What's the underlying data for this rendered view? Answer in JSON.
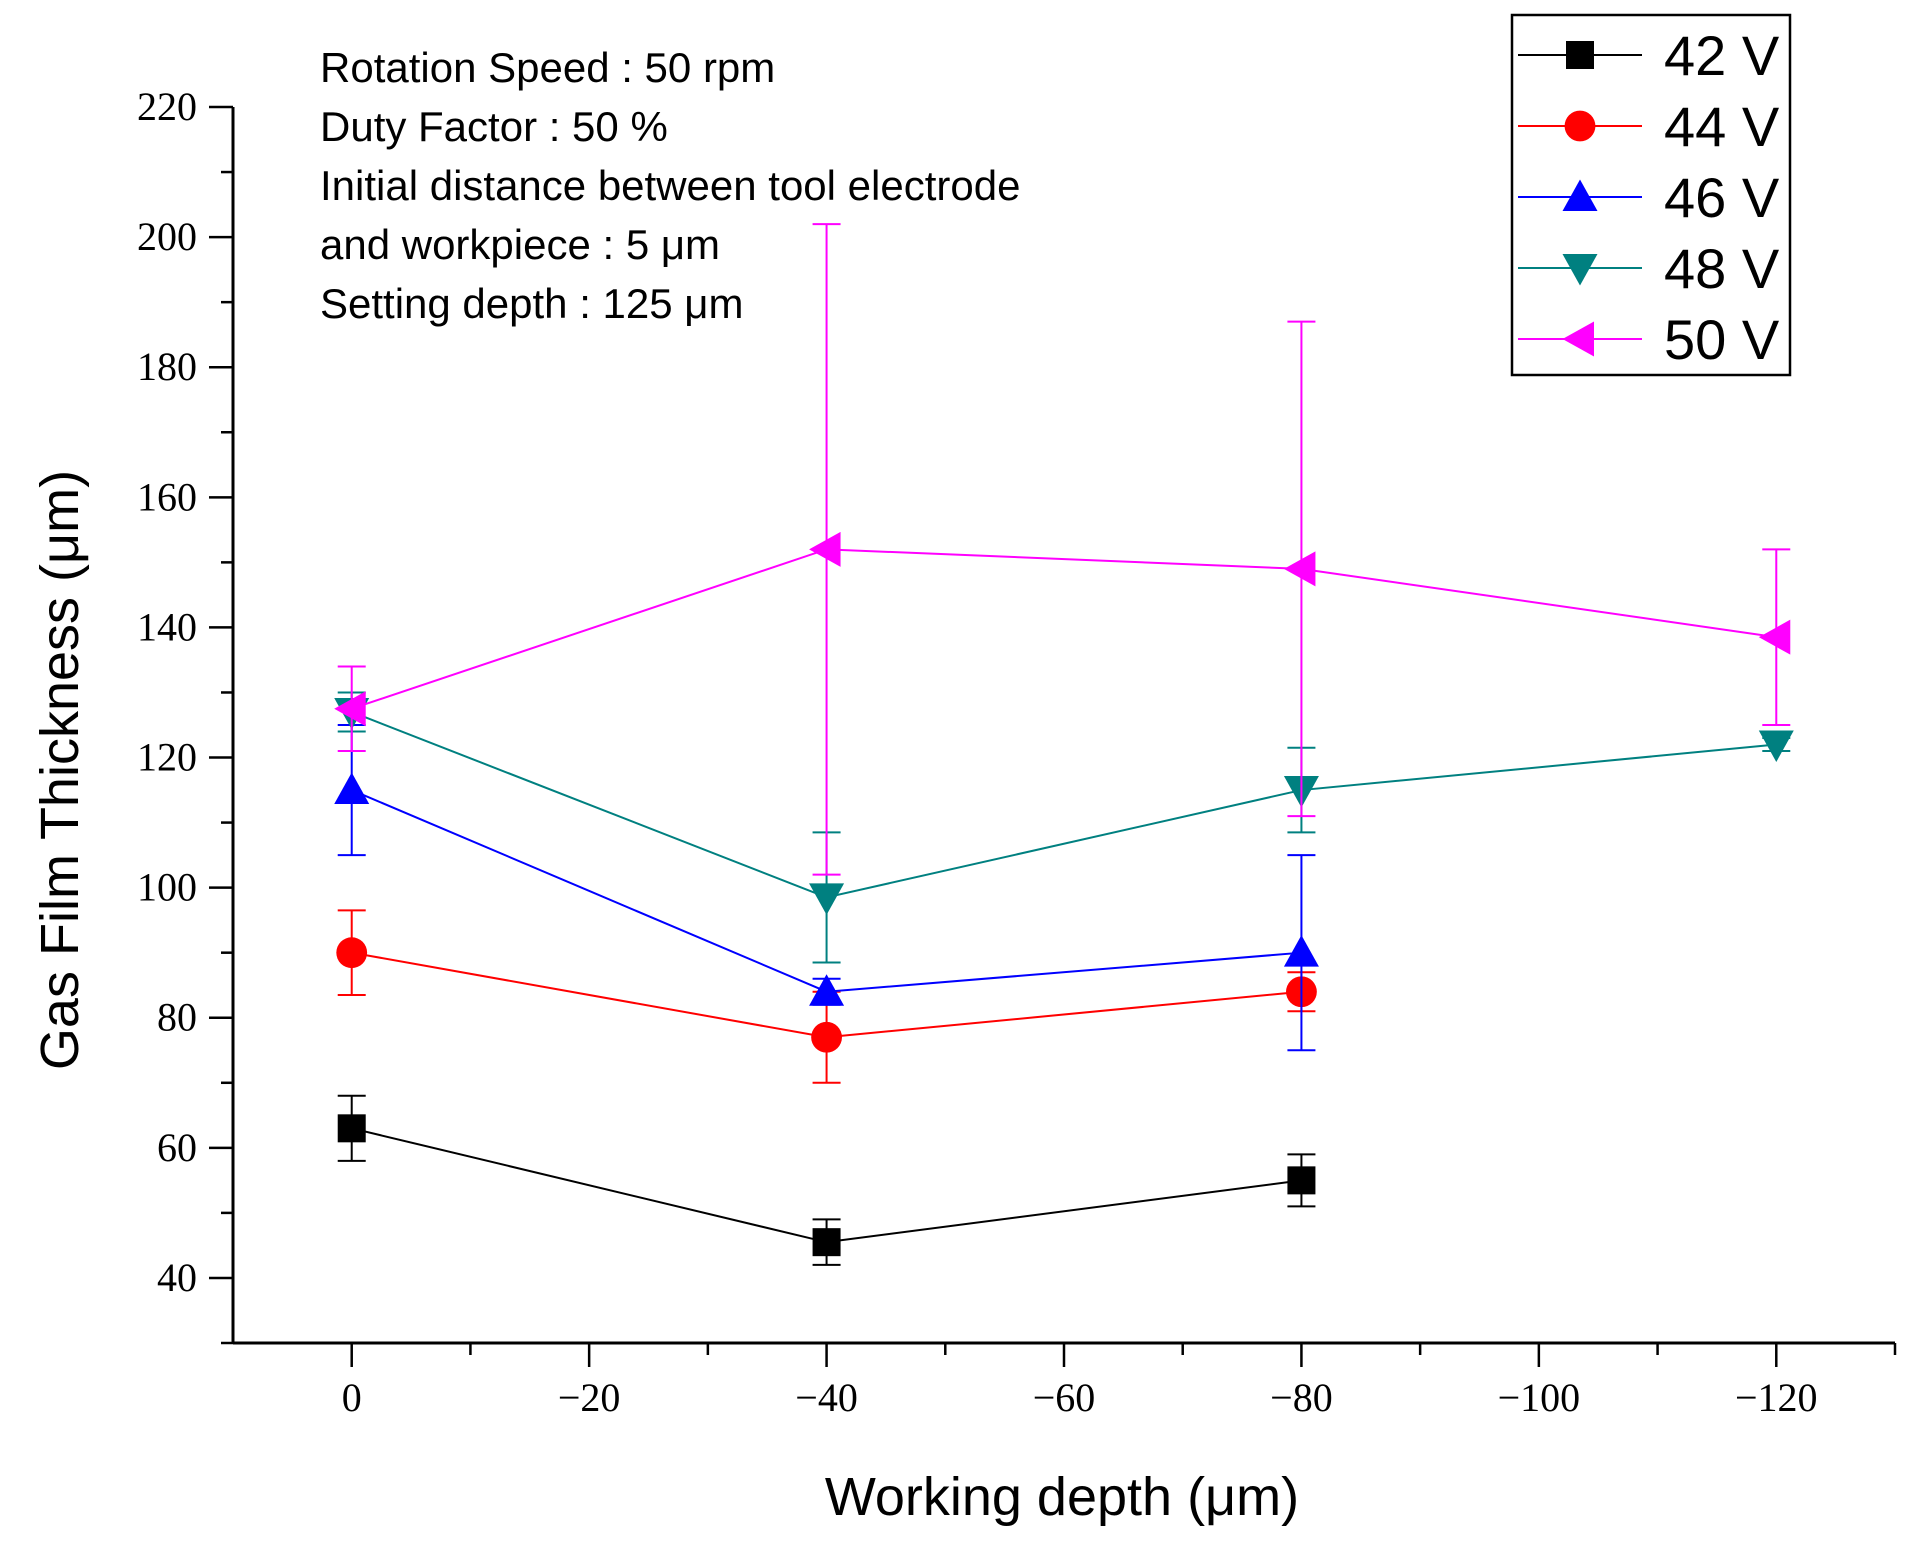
{
  "chart_data": {
    "type": "line",
    "xlabel": "Working depth (μm)",
    "ylabel": "Gas Film Thickness (μm)",
    "xlim": [
      10,
      -130
    ],
    "ylim": [
      30,
      220
    ],
    "x_ticks": [
      0,
      -20,
      -40,
      -60,
      -80,
      -100,
      -120
    ],
    "x_tick_labels": [
      "0",
      "−20",
      "−40",
      "−60",
      "−80",
      "−100",
      "−120"
    ],
    "y_ticks": [
      40,
      60,
      80,
      100,
      120,
      140,
      160,
      180,
      200,
      220
    ],
    "y_tick_labels": [
      "40",
      "60",
      "80",
      "100",
      "120",
      "140",
      "160",
      "180",
      "200",
      "220"
    ],
    "grid": false,
    "legend_position": "top-right",
    "annotations": [
      "Rotation Speed : 50 rpm",
      "Duty Factor : 50 %",
      "Initial distance between tool electrode",
      "and workpiece : 5 μm",
      "Setting depth : 125 μm"
    ],
    "series": [
      {
        "name": "42 V",
        "color": "#000000",
        "marker": "square",
        "points": [
          {
            "x": 0,
            "y": 63,
            "lo": 58,
            "hi": 68
          },
          {
            "x": -40,
            "y": 45.5,
            "lo": 42,
            "hi": 49
          },
          {
            "x": -80,
            "y": 55,
            "lo": 51,
            "hi": 59
          }
        ]
      },
      {
        "name": "44 V",
        "color": "#ff0000",
        "marker": "circle",
        "points": [
          {
            "x": 0,
            "y": 90,
            "lo": 83.5,
            "hi": 96.5
          },
          {
            "x": -40,
            "y": 77,
            "lo": 70,
            "hi": 84
          },
          {
            "x": -80,
            "y": 84,
            "lo": 81,
            "hi": 87
          }
        ]
      },
      {
        "name": "46 V",
        "color": "#0000ff",
        "marker": "triangle-up",
        "points": [
          {
            "x": 0,
            "y": 115,
            "lo": 105,
            "hi": 125
          },
          {
            "x": -40,
            "y": 84,
            "lo": 82,
            "hi": 86
          },
          {
            "x": -80,
            "y": 90,
            "lo": 75,
            "hi": 105
          }
        ]
      },
      {
        "name": "48 V",
        "color": "#008080",
        "marker": "triangle-down",
        "points": [
          {
            "x": 0,
            "y": 127,
            "lo": 124,
            "hi": 130
          },
          {
            "x": -40,
            "y": 98.5,
            "lo": 88.5,
            "hi": 108.5
          },
          {
            "x": -80,
            "y": 115,
            "lo": 108.5,
            "hi": 121.5
          },
          {
            "x": -120,
            "y": 122,
            "lo": 121,
            "hi": 123
          }
        ]
      },
      {
        "name": "50 V",
        "color": "#ff00ff",
        "marker": "triangle-left",
        "points": [
          {
            "x": 0,
            "y": 127.5,
            "lo": 121,
            "hi": 134
          },
          {
            "x": -40,
            "y": 152,
            "lo": 102,
            "hi": 202
          },
          {
            "x": -80,
            "y": 149,
            "lo": 111,
            "hi": 187
          },
          {
            "x": -120,
            "y": 138.5,
            "lo": 125,
            "hi": 152
          }
        ]
      }
    ]
  }
}
